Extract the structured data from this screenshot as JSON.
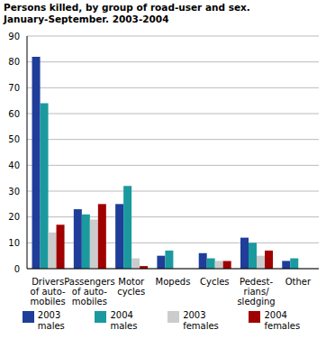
{
  "chart_data": {
    "type": "bar",
    "title": "Persons killed, by group of road-user and sex.",
    "subtitle": "January-September. 2003-2004",
    "categories": [
      "Drivers\nof auto-\nmobiles",
      "Passengers\nof auto-\nmobiles",
      "Motor\ncycles",
      "Mopeds",
      "Cycles",
      "Pedest-\nrians/\nsledging",
      "Other"
    ],
    "series": [
      {
        "name": "2003 males",
        "color": "#1f3d99",
        "values": [
          82,
          23,
          25,
          5,
          6,
          12,
          3
        ]
      },
      {
        "name": "2004 males",
        "color": "#1a9a9e",
        "values": [
          64,
          21,
          32,
          7,
          4,
          10,
          4
        ]
      },
      {
        "name": "2003 females",
        "color": "#cccccc",
        "values": [
          14,
          19,
          4,
          0,
          3,
          5,
          0
        ]
      },
      {
        "name": "2004 females",
        "color": "#a00000",
        "values": [
          17,
          25,
          1,
          0,
          3,
          7,
          0
        ]
      }
    ],
    "ylim": [
      0,
      90
    ],
    "yticks": [
      0,
      10,
      20,
      30,
      40,
      50,
      60,
      70,
      80,
      90
    ],
    "grid": true,
    "legend": "bottom"
  }
}
